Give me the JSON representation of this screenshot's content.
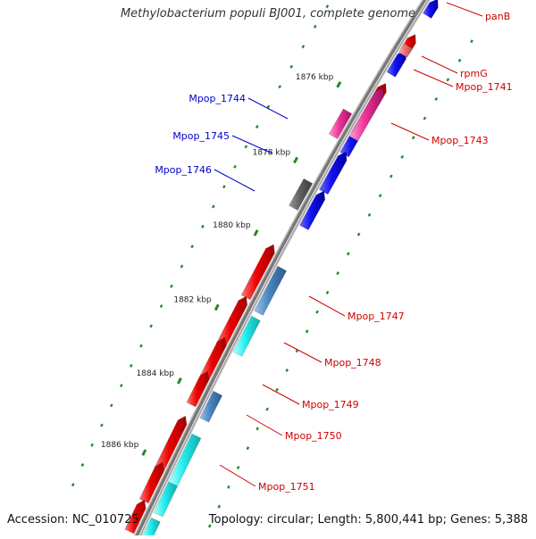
{
  "title": "Methylobacterium populi BJ001, complete genome",
  "accession": "Accession: NC_010725",
  "topology": "Topology: circular; Length: 5,800,441 bp; Genes: 5,388",
  "colors": {
    "backbone": "#777777",
    "plus_label": "#d00000",
    "minus_label": "#0000cc",
    "tick": "#228b22"
  },
  "scale_labels": [
    "1876 kbp",
    "1878 kbp",
    "1880 kbp",
    "1882 kbp",
    "1884 kbp",
    "1886 kbp"
  ],
  "minus_gene_labels": [
    "Mpop_1744",
    "Mpop_1745",
    "Mpop_1746"
  ],
  "plus_gene_labels": [
    "panB",
    "rpmG",
    "Mpop_1741",
    "Mpop_1743",
    "Mpop_1747",
    "Mpop_1748",
    "Mpop_1749",
    "Mpop_1750",
    "Mpop_1751"
  ]
}
